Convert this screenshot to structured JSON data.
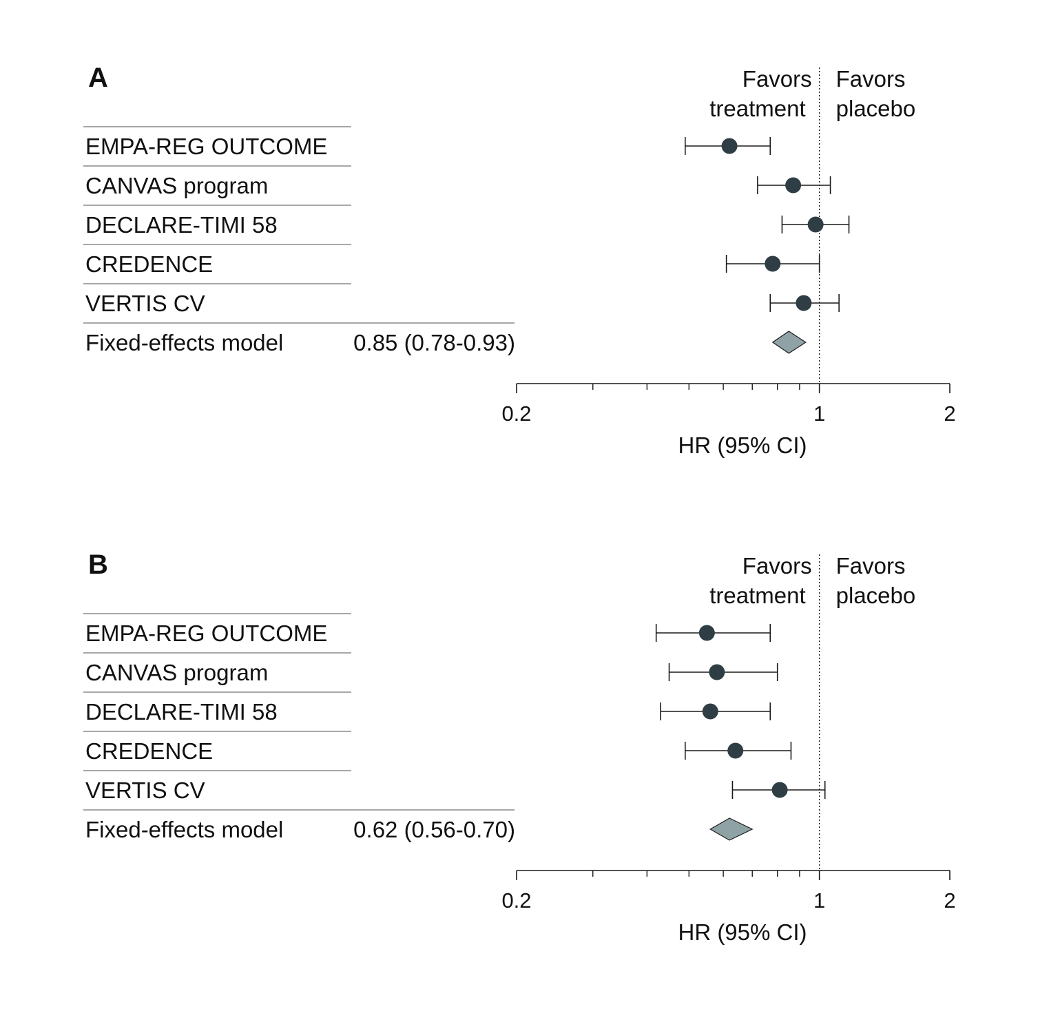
{
  "colors": {
    "point": "#2f3e44",
    "diamond_fill": "#8fa3a6",
    "diamond_stroke": "#1a1a1a",
    "axis": "#1a1a1a",
    "row_rule": "#8a8a8a"
  },
  "chart_data": [
    {
      "type": "forest",
      "panel_label": "A",
      "scale": "log",
      "xlim": [
        0.2,
        2
      ],
      "major_ticks": [
        0.2,
        1,
        2
      ],
      "tick_labels": [
        "0.2",
        "1",
        "2"
      ],
      "minor_ticks": [
        0.3,
        0.4,
        0.5,
        0.6,
        0.7,
        0.8,
        0.9
      ],
      "reference_line": 1,
      "xlabel": "HR (95% CI)",
      "favors_left": [
        "Favors",
        "treatment"
      ],
      "favors_right": [
        "Favors",
        "placebo"
      ],
      "studies": [
        {
          "name": "EMPA-REG OUTCOME",
          "hr": 0.62,
          "lo": 0.49,
          "hi": 0.77
        },
        {
          "name": "CANVAS program",
          "hr": 0.87,
          "lo": 0.72,
          "hi": 1.06
        },
        {
          "name": "DECLARE-TIMI 58",
          "hr": 0.98,
          "lo": 0.82,
          "hi": 1.17
        },
        {
          "name": "CREDENCE",
          "hr": 0.78,
          "lo": 0.61,
          "hi": 1.0
        },
        {
          "name": "VERTIS CV",
          "hr": 0.92,
          "lo": 0.77,
          "hi": 1.11
        }
      ],
      "pooled": {
        "label": "Fixed-effects model",
        "text": "0.85 (0.78-0.93)",
        "hr": 0.85,
        "lo": 0.78,
        "hi": 0.93
      }
    },
    {
      "type": "forest",
      "panel_label": "B",
      "scale": "log",
      "xlim": [
        0.2,
        2
      ],
      "major_ticks": [
        0.2,
        1,
        2
      ],
      "tick_labels": [
        "0.2",
        "1",
        "2"
      ],
      "minor_ticks": [
        0.3,
        0.4,
        0.5,
        0.6,
        0.7,
        0.8,
        0.9
      ],
      "reference_line": 1,
      "xlabel": "HR (95% CI)",
      "favors_left": [
        "Favors",
        "treatment"
      ],
      "favors_right": [
        "Favors",
        "placebo"
      ],
      "studies": [
        {
          "name": "EMPA-REG OUTCOME",
          "hr": 0.55,
          "lo": 0.42,
          "hi": 0.77
        },
        {
          "name": "CANVAS program",
          "hr": 0.58,
          "lo": 0.45,
          "hi": 0.8
        },
        {
          "name": "DECLARE-TIMI 58",
          "hr": 0.56,
          "lo": 0.43,
          "hi": 0.77
        },
        {
          "name": "CREDENCE",
          "hr": 0.64,
          "lo": 0.49,
          "hi": 0.86
        },
        {
          "name": "VERTIS CV",
          "hr": 0.81,
          "lo": 0.63,
          "hi": 1.03
        }
      ],
      "pooled": {
        "label": "Fixed-effects model",
        "text": "0.62 (0.56-0.70)",
        "hr": 0.62,
        "lo": 0.56,
        "hi": 0.7
      }
    }
  ]
}
